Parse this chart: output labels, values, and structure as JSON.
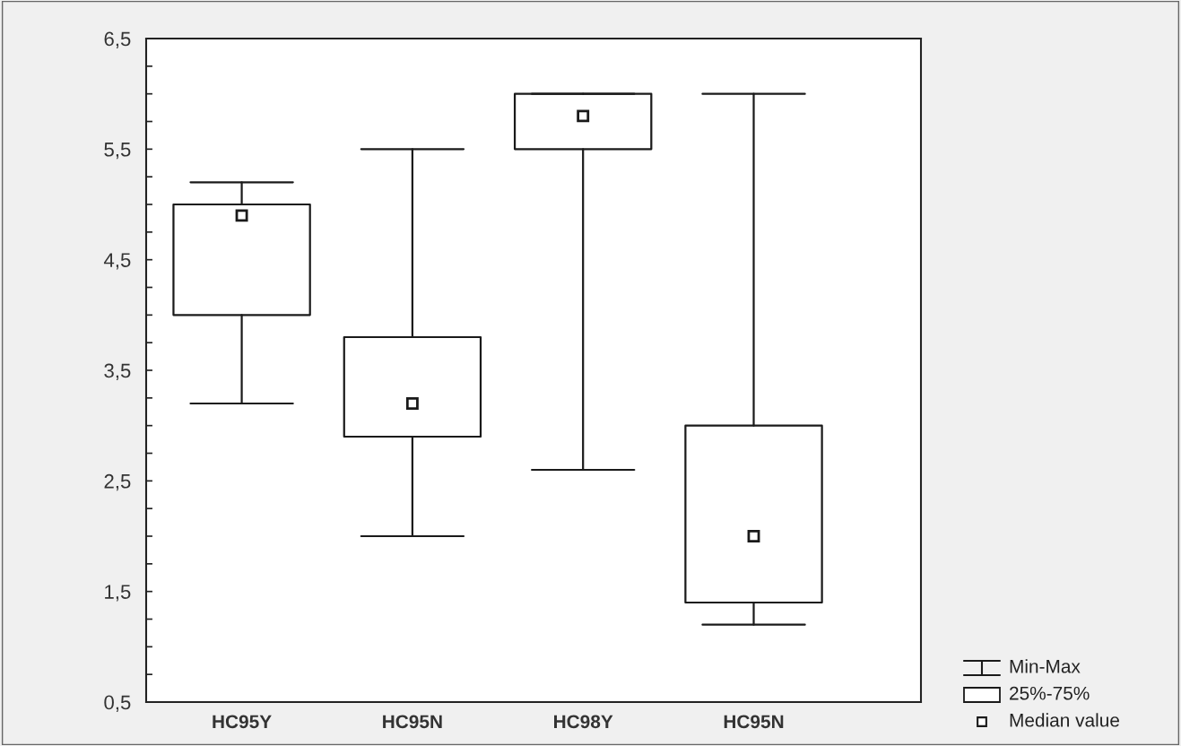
{
  "chart_data": {
    "type": "box",
    "categories": [
      "HC95Y",
      "HC95N",
      "HC98Y",
      "HC95N"
    ],
    "boxes": [
      {
        "low": 3.2,
        "q1": 4.0,
        "median": 4.9,
        "q3": 5.0,
        "high": 5.2
      },
      {
        "low": 2.0,
        "q1": 2.9,
        "median": 3.2,
        "q3": 3.8,
        "high": 5.5
      },
      {
        "low": 2.6,
        "q1": 5.5,
        "median": 5.8,
        "q3": 6.0,
        "high": 6.0
      },
      {
        "low": 1.2,
        "q1": 1.4,
        "median": 2.0,
        "q3": 3.0,
        "high": 6.0
      }
    ],
    "color": "#1a1a1a",
    "marker": "square",
    "ylim": [
      0.5,
      6.5
    ],
    "yticks": [
      {
        "value": 6.5,
        "label": "6,5"
      },
      {
        "value": 6.25,
        "label": null
      },
      {
        "value": 6.0,
        "label": null
      },
      {
        "value": 5.75,
        "label": null
      },
      {
        "value": 5.5,
        "label": "5,5"
      },
      {
        "value": 5.25,
        "label": null
      },
      {
        "value": 5.0,
        "label": null
      },
      {
        "value": 4.75,
        "label": null
      },
      {
        "value": 4.5,
        "label": "4,5"
      },
      {
        "value": 4.25,
        "label": null
      },
      {
        "value": 4.0,
        "label": null
      },
      {
        "value": 3.75,
        "label": null
      },
      {
        "value": 3.5,
        "label": "3,5"
      },
      {
        "value": 3.25,
        "label": null
      },
      {
        "value": 3.0,
        "label": null
      },
      {
        "value": 2.75,
        "label": null
      },
      {
        "value": 2.5,
        "label": "2,5"
      },
      {
        "value": 2.25,
        "label": null
      },
      {
        "value": 2.0,
        "label": null
      },
      {
        "value": 1.75,
        "label": null
      },
      {
        "value": 1.5,
        "label": "1,5"
      },
      {
        "value": 1.25,
        "label": null
      },
      {
        "value": 1.0,
        "label": null
      },
      {
        "value": 0.75,
        "label": null
      },
      {
        "value": 0.5,
        "label": "0,5"
      }
    ],
    "grid": false,
    "annotations": [
      "Min-Max",
      "25%-75%",
      "Median value"
    ]
  }
}
